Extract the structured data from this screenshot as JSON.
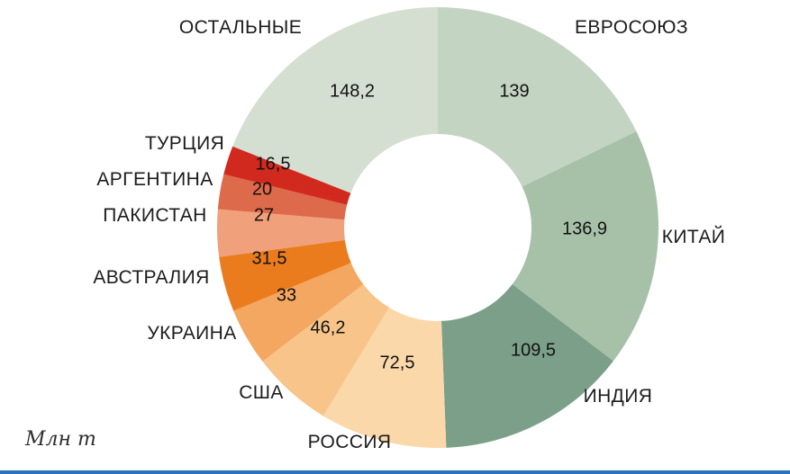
{
  "chart_data": {
    "type": "pie",
    "subtype": "donut",
    "title": "",
    "unit_label": "Млн т",
    "direction": "clockwise",
    "start_angle_deg": 0,
    "legend_position": "none",
    "segments": [
      {
        "key": "eu",
        "label": "ЕВРОСОЮЗ",
        "value": 139,
        "value_label": "139",
        "color": "#c4d4c2"
      },
      {
        "key": "china",
        "label": "КИТАЙ",
        "value": 136.9,
        "value_label": "136,9",
        "color": "#a6c1a8"
      },
      {
        "key": "india",
        "label": "ИНДИЯ",
        "value": 109.5,
        "value_label": "109,5",
        "color": "#7b9f88"
      },
      {
        "key": "russia",
        "label": "РОССИЯ",
        "value": 72.5,
        "value_label": "72,5",
        "color": "#fbd8aa"
      },
      {
        "key": "usa",
        "label": "США",
        "value": 46.2,
        "value_label": "46,2",
        "color": "#f8c489"
      },
      {
        "key": "ukraine",
        "label": "УКРАИНА",
        "value": 33,
        "value_label": "33",
        "color": "#f4a761"
      },
      {
        "key": "australia",
        "label": "АВСТРАЛИЯ",
        "value": 31.5,
        "value_label": "31,5",
        "color": "#ea7c1e"
      },
      {
        "key": "pakistan",
        "label": "ПАКИСТАН",
        "value": 27,
        "value_label": "27",
        "color": "#f0a07b"
      },
      {
        "key": "argentina",
        "label": "АРГЕНТИНА",
        "value": 20,
        "value_label": "20",
        "color": "#dd6a4a"
      },
      {
        "key": "turkey",
        "label": "ТУРЦИЯ",
        "value": 16.5,
        "value_label": "16,5",
        "color": "#d2291e"
      },
      {
        "key": "others",
        "label": "ОСТАЛЬНЫЕ",
        "value": 148.2,
        "value_label": "148,2",
        "color": "#d4ded1"
      }
    ]
  },
  "accents": {
    "bottom_bar_color": "#2b72b8"
  }
}
